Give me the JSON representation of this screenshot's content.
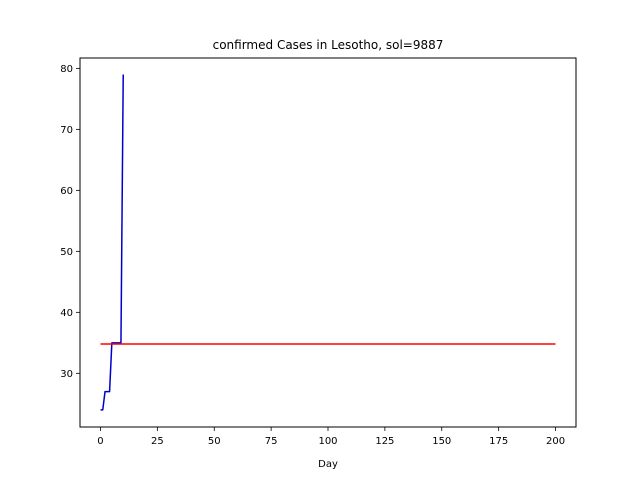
{
  "chart_data": {
    "type": "line",
    "title": "confirmed Cases in Lesotho, sol=9887",
    "xlabel": "Day",
    "ylabel": "",
    "xlim": [
      -9,
      209
    ],
    "ylim": [
      21.2,
      81.7
    ],
    "xticks": [
      0,
      25,
      50,
      75,
      100,
      125,
      150,
      175,
      200
    ],
    "yticks": [
      30,
      40,
      50,
      60,
      70,
      80
    ],
    "grid": false,
    "series": [
      {
        "color": "#0000cd",
        "x": [
          0,
          1,
          2,
          3,
          4,
          5,
          6,
          7,
          8,
          9,
          10
        ],
        "y": [
          24,
          24,
          27,
          27,
          27,
          35,
          35,
          35,
          35,
          35,
          79
        ]
      },
      {
        "color": "#ff0000",
        "x": [
          0,
          200
        ],
        "y": [
          34.8,
          34.8
        ]
      }
    ]
  }
}
